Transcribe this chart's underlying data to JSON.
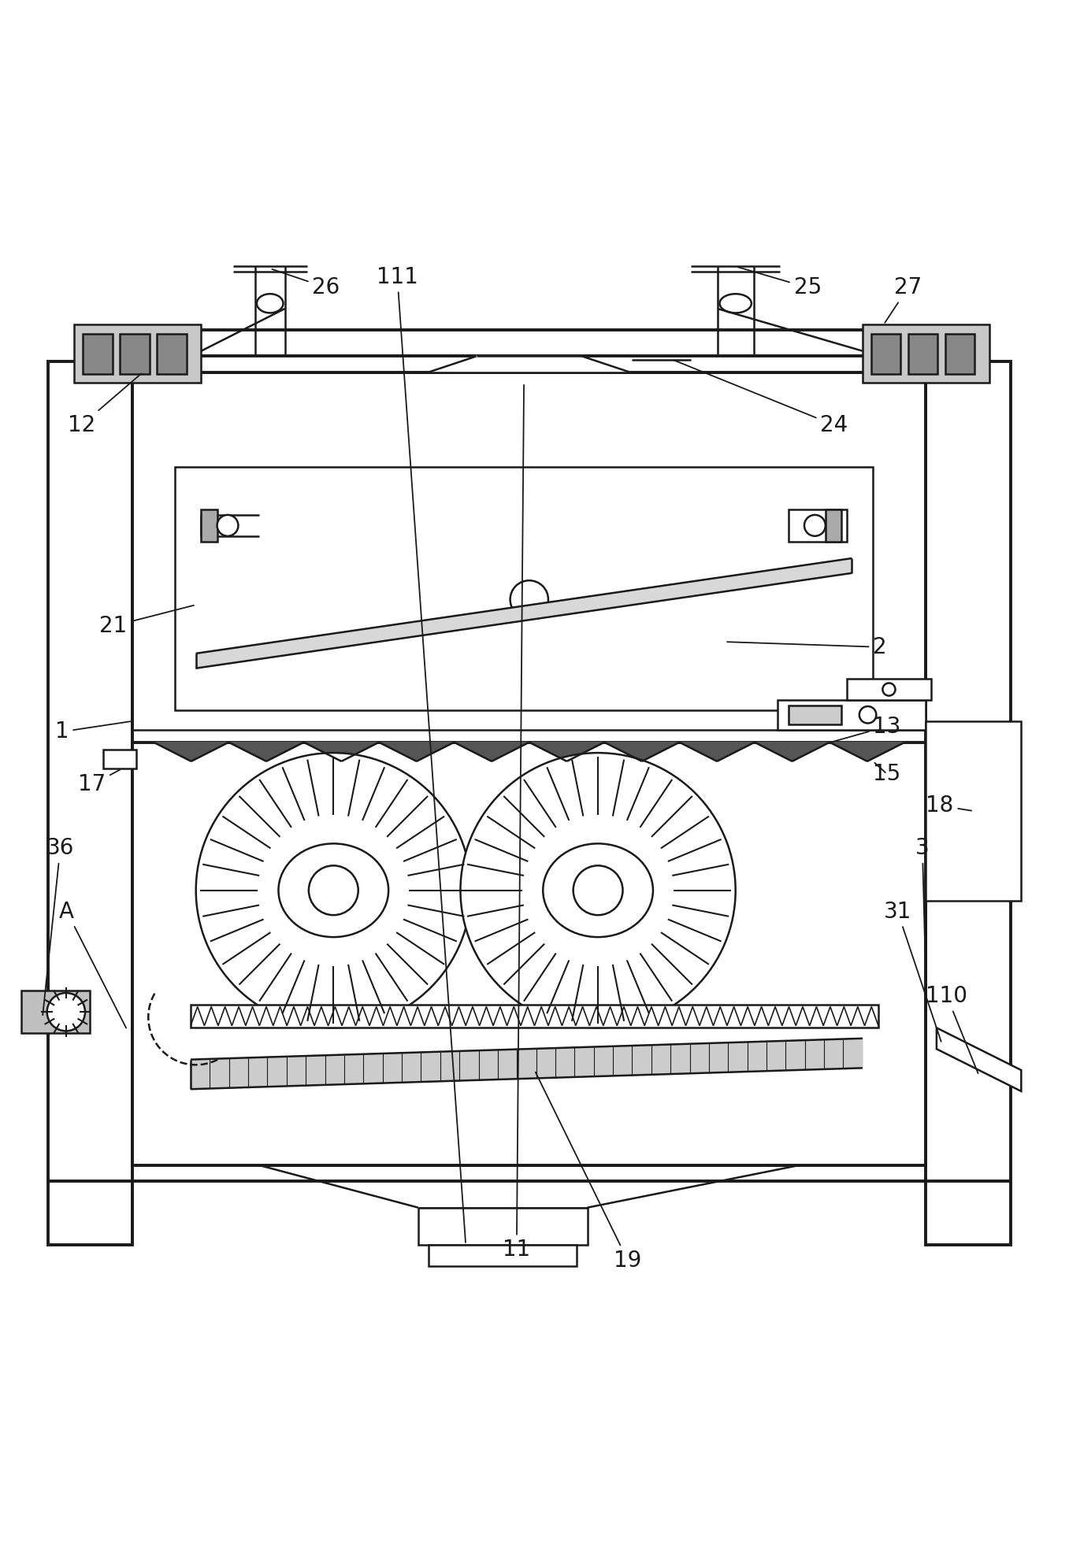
{
  "bg_color": "#ffffff",
  "line_color": "#1a1a1a",
  "lw": 1.8,
  "tlw": 2.8,
  "fs": 20,
  "fig_w": 13.57,
  "fig_h": 19.66,
  "dpi": 100
}
